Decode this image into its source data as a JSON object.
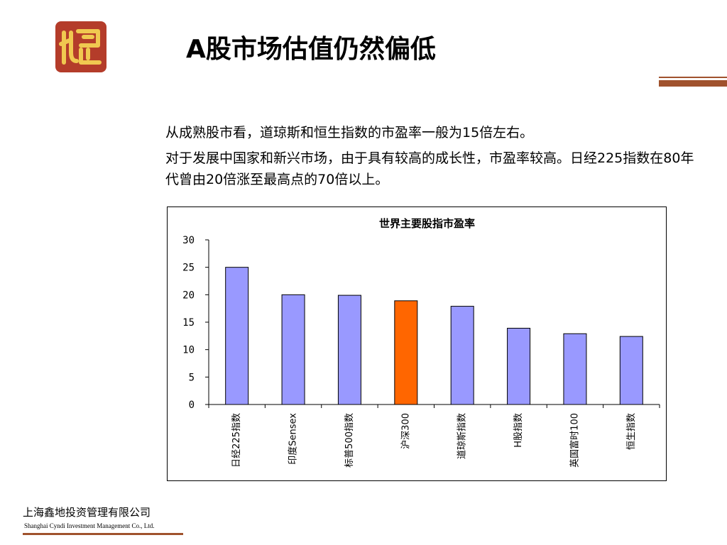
{
  "colors": {
    "accent": "#a0522d",
    "logo_red": "#b43c2a",
    "logo_gold": "#f0c850",
    "bar_default": "#9999ff",
    "bar_highlight": "#ff6600"
  },
  "logo": {
    "icon": "seal-logo-icon"
  },
  "slide": {
    "title": "A股市场估值仍然偏低",
    "paragraphs": [
      "从成熟股市看，道琼斯和恒生指数的市盈率一般为15倍左右。",
      "对于发展中国家和新兴市场，由于具有较高的成长性，市盈率较高。日经225指数在80年代曾由20倍涨至最高点的70倍以上。"
    ]
  },
  "footer": {
    "company_cn": "上海鑫地投资管理有限公司",
    "company_en": "Shanghai Cyndi Investment Management Co., Ltd."
  },
  "chart_data": {
    "type": "bar",
    "title": "世界主要股指市盈率",
    "categories": [
      "日经225指数",
      "印度Sensex",
      "标普500指数",
      "沪深300",
      "道琼斯指数",
      "H股指数",
      "英国富时100",
      "恒生指数"
    ],
    "values": [
      25,
      20,
      19.9,
      18.9,
      17.9,
      13.9,
      12.9,
      12.4
    ],
    "highlight_index": 3,
    "ylim": [
      0,
      30
    ],
    "yticks": [
      0,
      5,
      10,
      15,
      20,
      25,
      30
    ],
    "xlabel": "",
    "ylabel": "",
    "grid": false,
    "legend": "none"
  }
}
